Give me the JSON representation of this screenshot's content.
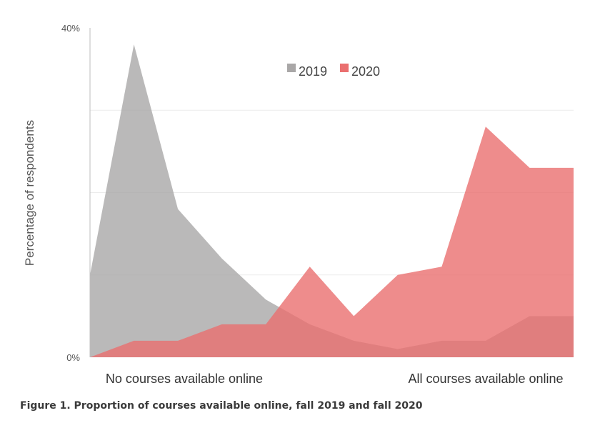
{
  "chart_data": {
    "type": "area",
    "ylabel": "Percentage of respondents",
    "ylim": [
      0,
      40
    ],
    "y_tick_labels": [
      "0%",
      "40%"
    ],
    "y_gridlines": [
      10,
      20,
      30
    ],
    "x_end_labels": {
      "left": "No courses available online",
      "right": "All courses available online"
    },
    "x": [
      0,
      1,
      2,
      3,
      4,
      5,
      6,
      7,
      8,
      9,
      10,
      11
    ],
    "series": [
      {
        "name": "2019",
        "color": "#a9a7a7",
        "values": [
          10,
          38,
          18,
          12,
          7,
          4,
          2,
          1,
          2,
          2,
          5,
          5
        ]
      },
      {
        "name": "2020",
        "color": "#ea6f6f",
        "values": [
          0,
          2,
          2,
          4,
          4,
          11,
          5,
          10,
          11,
          28,
          23,
          23
        ]
      }
    ],
    "grid": true,
    "legend_position": "top-center"
  },
  "caption": "Figure 1. Proportion of courses available online, fall 2019 and fall 2020"
}
